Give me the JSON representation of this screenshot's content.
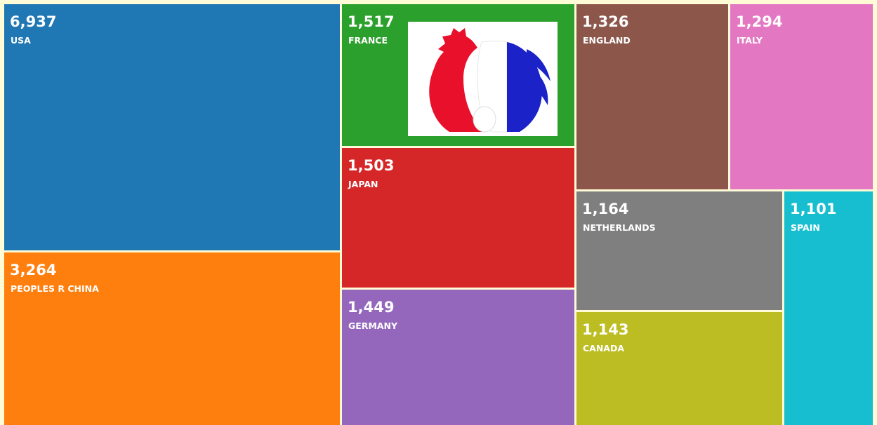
{
  "chart_data": {
    "type": "treemap",
    "categories": [
      "USA",
      "PEOPLES R CHINA",
      "FRANCE",
      "JAPAN",
      "GERMANY",
      "ENGLAND",
      "ITALY",
      "NETHERLANDS",
      "CANADA",
      "SPAIN"
    ],
    "values": [
      6937,
      3264,
      1517,
      1503,
      1449,
      1326,
      1294,
      1164,
      1143,
      1101
    ],
    "value_labels": [
      "6,937",
      "3,264",
      "1,517",
      "1,503",
      "1,449",
      "1,326",
      "1,294",
      "1,164",
      "1,143",
      "1,101"
    ],
    "colors": [
      "#1f77b4",
      "#ff7f0e",
      "#2ca02c",
      "#d62728",
      "#9467bd",
      "#8c564b",
      "#e377c2",
      "#7f7f7f",
      "#bcbd22",
      "#17becf"
    ]
  }
}
